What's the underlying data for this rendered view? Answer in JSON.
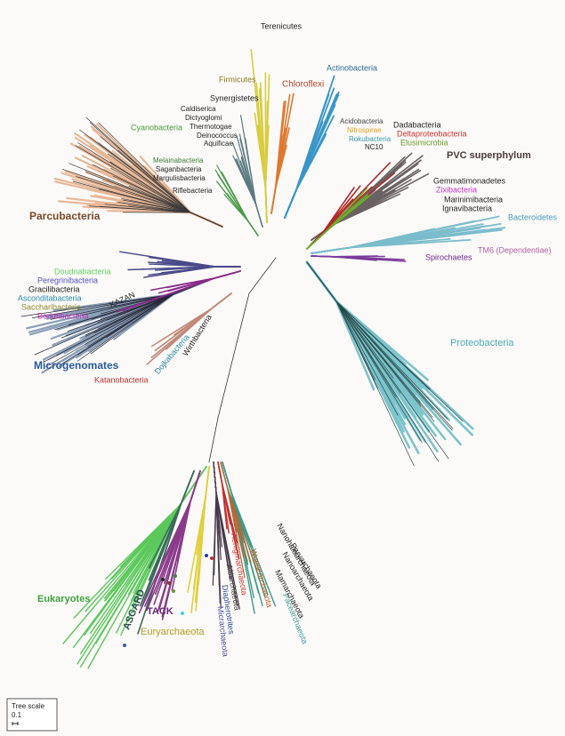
{
  "labels": [
    "Terenicutes",
    "Firmicutes",
    "Chloroflexi",
    "Actinobacteria",
    "Synergistetes",
    "Caldiserica",
    "Dictyoglomi",
    "Thermotogae",
    "Deinococcus",
    "Aquificae",
    "Cyanobacteria",
    "Acidobacteria",
    "Nitrospirae",
    "Rokubacteria",
    "NC10",
    "Dadabacteria",
    "Deltaproteobacteria",
    "Elusimicrobia",
    "PVC superphylum",
    "Melainabacteria",
    "Saganbacteria",
    "Margulisbacteria",
    "Riflebacteria",
    "Gemmatimonadetes",
    "Zixibacteria",
    "Marinimibacteria",
    "Ignavibacteria",
    "Bacteroidetes",
    "Parcubacteria",
    "TM6 (Dependentiae)",
    "Spirochaetes",
    "Doudnabacteria",
    "Peregrinibacteria",
    "Gracilibacteria",
    "Asconditabacteria",
    "Saccharibacteria",
    "Berkelbacteria",
    "KAZAN",
    "Wirthbacteria",
    "Dojkabacteria",
    "Microgenomates",
    "Katanobacteria",
    "Proteobacteria",
    "Eukaryotes",
    "ASGARD",
    "TACK",
    "Euryarchaeota",
    "Aenigmarchaeota",
    "Altiarchaeota",
    "Diapherotrites",
    "Micrarchaeota",
    "Woesearchaeota",
    "Pacearchaeota",
    "Mamarchaeota",
    "Nanoarchaeota",
    "Parvarchaeota",
    "Nanohaloarchaeota"
  ],
  "tree_scale": {
    "title": "Tree scale",
    "value": "0.1"
  }
}
